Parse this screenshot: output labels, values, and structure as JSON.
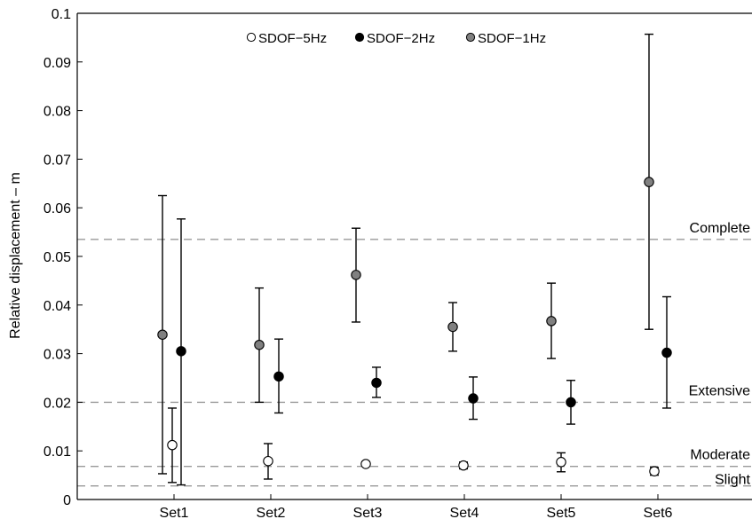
{
  "chart_data": {
    "type": "scatter",
    "title": "",
    "xlabel": "",
    "ylabel": "Relative displacement – m",
    "ylim": [
      0,
      0.1
    ],
    "yticks": [
      0,
      0.01,
      0.02,
      0.03,
      0.04,
      0.05,
      0.06,
      0.07,
      0.08,
      0.09,
      0.1
    ],
    "ytick_labels": [
      "0",
      "0.01",
      "0.02",
      "0.03",
      "0.04",
      "0.05",
      "0.06",
      "0.07",
      "0.08",
      "0.09",
      "0.1"
    ],
    "categories": [
      "Set1",
      "Set2",
      "Set3",
      "Set4",
      "Set5",
      "Set6"
    ],
    "grid": false,
    "legend_position": "top-center",
    "series": [
      {
        "name": "SDOF−5Hz",
        "marker_fill": "#ffffff",
        "values": [
          0.0112,
          0.0079,
          0.0073,
          0.007,
          0.0077,
          0.0058
        ],
        "lower": [
          0.0035,
          0.0042,
          null,
          0.0063,
          0.0057,
          0.005
        ],
        "upper": [
          0.0188,
          0.0115,
          null,
          0.0077,
          0.0096,
          0.0066
        ]
      },
      {
        "name": "SDOF−2Hz",
        "marker_fill": "#000000",
        "values": [
          0.0305,
          0.0253,
          0.024,
          0.0208,
          0.02,
          0.0302
        ],
        "lower": [
          0.003,
          0.0178,
          0.021,
          0.0165,
          0.0155,
          0.0188
        ],
        "upper": [
          0.0577,
          0.033,
          0.0272,
          0.0252,
          0.0245,
          0.0417
        ]
      },
      {
        "name": "SDOF−1Hz",
        "marker_fill": "#808080",
        "values": [
          0.0339,
          0.0318,
          0.0462,
          0.0355,
          0.0367,
          0.0653
        ],
        "lower": [
          0.0053,
          0.02,
          0.0365,
          0.0305,
          0.029,
          0.035
        ],
        "upper": [
          0.0625,
          0.0435,
          0.0558,
          0.0405,
          0.0445,
          0.0957
        ]
      }
    ],
    "thresholds": [
      {
        "label": "Complete",
        "value": 0.0535
      },
      {
        "label": "Extensive",
        "value": 0.02
      },
      {
        "label": "Moderate",
        "value": 0.0068
      },
      {
        "label": "Slight",
        "value": 0.0028
      }
    ],
    "colors": {
      "threshold_line": "#999999",
      "error_bar": "#000000",
      "axis": "#000000"
    }
  }
}
